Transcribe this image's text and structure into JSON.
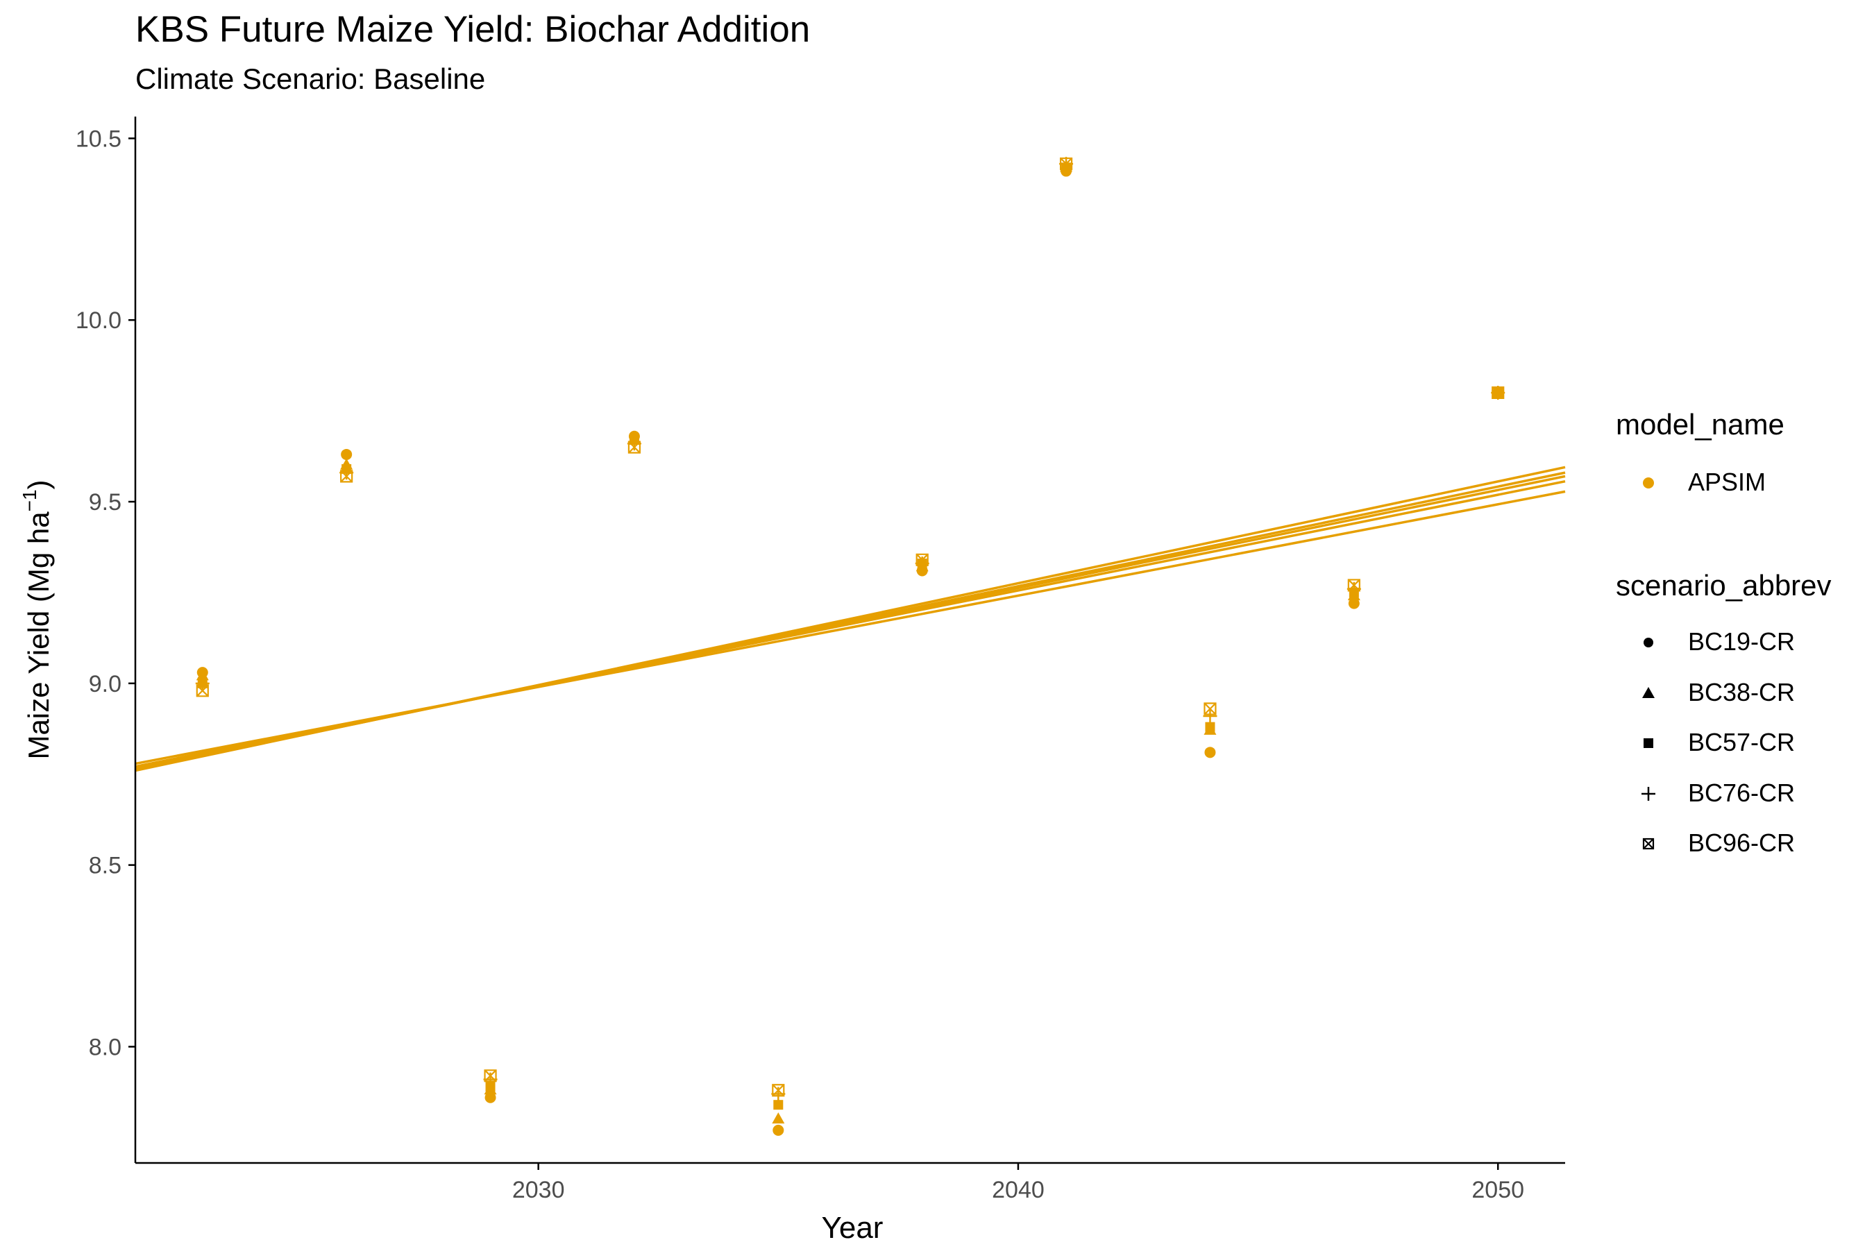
{
  "title": "KBS Future Maize Yield: Biochar Addition",
  "subtitle": "Climate Scenario: Baseline",
  "colors": {
    "series": "#E69F00",
    "axis": "#000000",
    "tick_text": "#4d4d4d"
  },
  "legends": {
    "model": {
      "title": "model_name",
      "items": [
        {
          "label": "APSIM",
          "shape": "circle"
        }
      ]
    },
    "scenario": {
      "title": "scenario_abbrev",
      "items": [
        {
          "label": "BC19-CR",
          "shape": "circle"
        },
        {
          "label": "BC38-CR",
          "shape": "triangle"
        },
        {
          "label": "BC57-CR",
          "shape": "square"
        },
        {
          "label": "BC76-CR",
          "shape": "plus"
        },
        {
          "label": "BC96-CR",
          "shape": "boxx"
        }
      ]
    }
  },
  "chart_data": {
    "type": "scatter",
    "title": "KBS Future Maize Yield: Biochar Addition",
    "subtitle": "Climate Scenario: Baseline",
    "xlabel": "Year",
    "ylabel_main": "Maize Yield (Mg ha",
    "ylabel_sup": "−1",
    "ylabel_close": ")",
    "xlim": [
      2021.6,
      2051.4
    ],
    "ylim": [
      7.68,
      10.56
    ],
    "x_ticks": [
      2030,
      2040,
      2050
    ],
    "x_tick_labels": [
      "2030",
      "2040",
      "2050"
    ],
    "y_ticks": [
      8.0,
      8.5,
      9.0,
      9.5,
      10.0,
      10.5
    ],
    "y_tick_labels": [
      "8.0",
      "8.5",
      "9.0",
      "9.5",
      "10.0",
      "10.5"
    ],
    "grid": false,
    "legend_position": "right",
    "x": [
      2023,
      2026,
      2029,
      2032,
      2035,
      2038,
      2041,
      2044,
      2047,
      2050
    ],
    "series": [
      {
        "name": "BC19-CR",
        "shape": "circle",
        "values": [
          9.03,
          9.63,
          7.86,
          9.68,
          7.77,
          9.31,
          10.41,
          8.81,
          9.22,
          9.8
        ],
        "trend": [
          [
            2021.6,
            8.76
          ],
          [
            2051.4,
            9.595
          ]
        ]
      },
      {
        "name": "BC38-CR",
        "shape": "triangle",
        "values": [
          9.02,
          9.6,
          7.88,
          9.67,
          7.8,
          9.32,
          10.42,
          8.87,
          9.24,
          9.8
        ],
        "trend": [
          [
            2021.6,
            8.763
          ],
          [
            2051.4,
            9.58
          ]
        ]
      },
      {
        "name": "BC57-CR",
        "shape": "square",
        "values": [
          9.0,
          9.59,
          7.89,
          9.67,
          7.84,
          9.33,
          10.42,
          8.88,
          9.25,
          9.8
        ],
        "trend": [
          [
            2021.6,
            8.766
          ],
          [
            2051.4,
            9.57
          ]
        ]
      },
      {
        "name": "BC76-CR",
        "shape": "plus",
        "values": [
          9.0,
          9.58,
          7.91,
          9.66,
          7.87,
          9.33,
          10.43,
          8.91,
          9.26,
          9.8
        ],
        "trend": [
          [
            2021.6,
            8.771
          ],
          [
            2051.4,
            9.556
          ]
        ]
      },
      {
        "name": "BC96-CR",
        "shape": "boxx",
        "values": [
          8.98,
          9.57,
          7.92,
          9.65,
          7.88,
          9.34,
          10.43,
          8.93,
          9.27,
          9.8
        ],
        "trend": [
          [
            2021.6,
            8.779
          ],
          [
            2051.4,
            9.528
          ]
        ]
      }
    ]
  }
}
